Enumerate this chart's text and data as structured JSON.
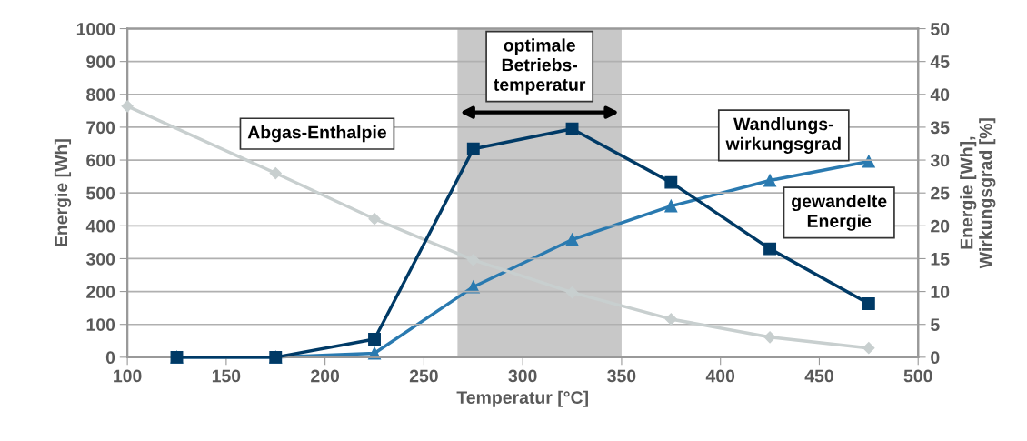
{
  "chart_data": {
    "type": "line",
    "xlabel": "Temperatur [°C]",
    "ylabel": "Energie [Wh]",
    "y2label": "Energie [Wh],\nWirkungsgrad [%]",
    "xlim": [
      100,
      500
    ],
    "xticks": [
      100,
      150,
      200,
      250,
      300,
      350,
      400,
      450,
      500
    ],
    "ylim": [
      0,
      1000
    ],
    "yticks": [
      0,
      100,
      200,
      300,
      400,
      500,
      600,
      700,
      800,
      900,
      1000
    ],
    "y2lim": [
      0,
      50
    ],
    "y2ticks": [
      0,
      5,
      10,
      15,
      20,
      25,
      30,
      35,
      40,
      45,
      50
    ],
    "grid": "y",
    "legend": false,
    "series": [
      {
        "name": "Abgas-Enthalpie",
        "color": "#c8cfcf",
        "marker": "diamond",
        "x": [
          100,
          175,
          225,
          275,
          325,
          375,
          425,
          475
        ],
        "values": [
          764,
          560,
          421,
          296,
          197,
          116,
          61,
          28
        ]
      },
      {
        "name": "gewandelte\nEnergie",
        "color": "#003a66",
        "marker": "square",
        "x": [
          125,
          175,
          225,
          275,
          325,
          375,
          425,
          475
        ],
        "values": [
          0,
          0,
          55,
          634,
          695,
          532,
          330,
          163
        ]
      },
      {
        "name": "Wandlungs-\nwirkungsgrad",
        "color": "#2a7ab0",
        "marker": "triangle",
        "axis": "y2",
        "x": [
          125,
          175,
          225,
          275,
          325,
          375,
          425,
          475
        ],
        "values": [
          0,
          0,
          0.6,
          10.7,
          17.9,
          23,
          26.9,
          29.8
        ]
      }
    ],
    "bands": [
      {
        "axis": "x",
        "from": 267,
        "to": 350,
        "label": "optimale\nBetriebs-\ntemperatur",
        "color": "#c8c8c8"
      }
    ]
  }
}
